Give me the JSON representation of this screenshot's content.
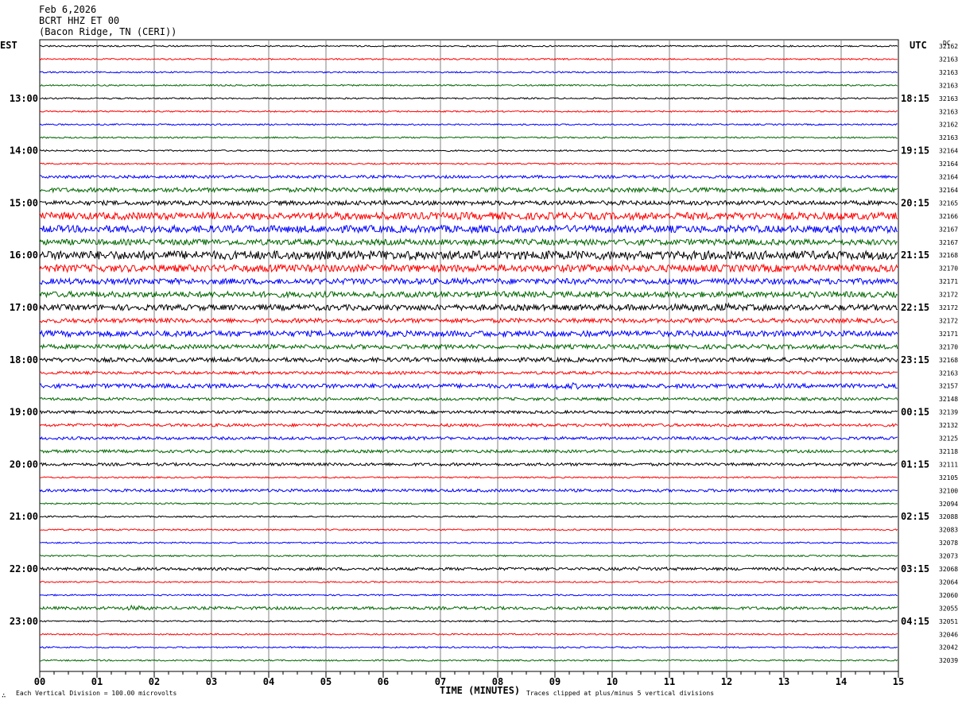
{
  "header": {
    "date": "Feb 6,2026",
    "station": "BCRT HHZ ET 00",
    "location": "(Bacon Ridge, TN (CERI))"
  },
  "labels": {
    "left_tz": "EST",
    "right_tz": "UTC",
    "dc": "DC",
    "xlabel": "TIME (MINUTES)",
    "scale_note": "Each Vertical Division =  100.00 microvolts",
    "clip_note": "Traces clipped at plus/minus 5 vertical divisions",
    "logo_glyph": "∴"
  },
  "colors": {
    "trace_cycle": [
      "#000000",
      "#ff0000",
      "#0000ff",
      "#006600"
    ],
    "grid": "#808080"
  },
  "chart_data": {
    "type": "line",
    "subtype": "helicorder",
    "x_ticks": [
      "00",
      "01",
      "02",
      "03",
      "04",
      "05",
      "06",
      "07",
      "08",
      "09",
      "10",
      "11",
      "12",
      "13",
      "14",
      "15"
    ],
    "xlim": [
      0,
      15
    ],
    "left_hour_labels": [
      "13:00",
      "14:00",
      "15:00",
      "16:00",
      "17:00",
      "18:00",
      "19:00",
      "20:00",
      "21:00",
      "22:00",
      "23:00"
    ],
    "right_hour_labels": [
      "18:15",
      "19:15",
      "20:15",
      "21:15",
      "22:15",
      "23:15",
      "00:15",
      "01:15",
      "02:15",
      "03:15",
      "04:15"
    ],
    "dc_values": [
      "32162",
      "32163",
      "32163",
      "32163",
      "32163",
      "32163",
      "32162",
      "32163",
      "32164",
      "32164",
      "32164",
      "32164",
      "32165",
      "32166",
      "32167",
      "32167",
      "32168",
      "32170",
      "32171",
      "32172",
      "32172",
      "32172",
      "32171",
      "32170",
      "32168",
      "32163",
      "32157",
      "32148",
      "32139",
      "32132",
      "32125",
      "32118",
      "32111",
      "32105",
      "32100",
      "32094",
      "32088",
      "32083",
      "32078",
      "32073",
      "32068",
      "32064",
      "32060",
      "32055",
      "32051",
      "32046",
      "32042",
      "32039"
    ],
    "trace_amplitude": [
      1,
      1,
      1,
      1,
      1,
      1,
      1,
      1,
      1,
      1,
      2,
      3,
      3,
      5,
      5,
      4,
      6,
      5,
      4,
      4,
      4,
      3,
      4,
      3,
      3,
      2,
      3,
      2,
      2,
      2,
      2,
      2,
      2,
      1,
      2,
      1,
      1,
      1,
      1,
      1,
      2,
      1,
      1,
      2,
      1,
      1,
      1,
      1
    ],
    "events": [
      {
        "trace": 13,
        "from": 3.0,
        "to": 6.5,
        "amp": 4
      },
      {
        "trace": 14,
        "from": 8.8,
        "to": 10.5,
        "amp": 3
      },
      {
        "trace": 16,
        "from": 6.0,
        "to": 9.0,
        "amp": 4
      },
      {
        "trace": 16,
        "from": 10.8,
        "to": 11.2,
        "amp": 4
      },
      {
        "trace": 17,
        "from": 3.0,
        "to": 4.6,
        "amp": 3
      },
      {
        "trace": 18,
        "from": 4.0,
        "to": 6.2,
        "amp": 2
      },
      {
        "trace": 19,
        "from": 5.2,
        "to": 8.2,
        "amp": 3
      },
      {
        "trace": 20,
        "from": 9.0,
        "to": 14.5,
        "amp": 4
      },
      {
        "trace": 22,
        "from": 7.6,
        "to": 10.2,
        "amp": 3
      },
      {
        "trace": 23,
        "from": 6.8,
        "to": 8.2,
        "amp": 2
      },
      {
        "trace": 26,
        "from": 8.8,
        "to": 9.6,
        "amp": 4
      },
      {
        "trace": 29,
        "from": 8.2,
        "to": 8.8,
        "amp": 2
      },
      {
        "trace": 30,
        "from": 5.7,
        "to": 7.0,
        "amp": 2
      },
      {
        "trace": 40,
        "from": 9.0,
        "to": 12.0,
        "amp": 2
      },
      {
        "trace": 43,
        "from": 1.3,
        "to": 2.0,
        "amp": 3
      }
    ]
  }
}
